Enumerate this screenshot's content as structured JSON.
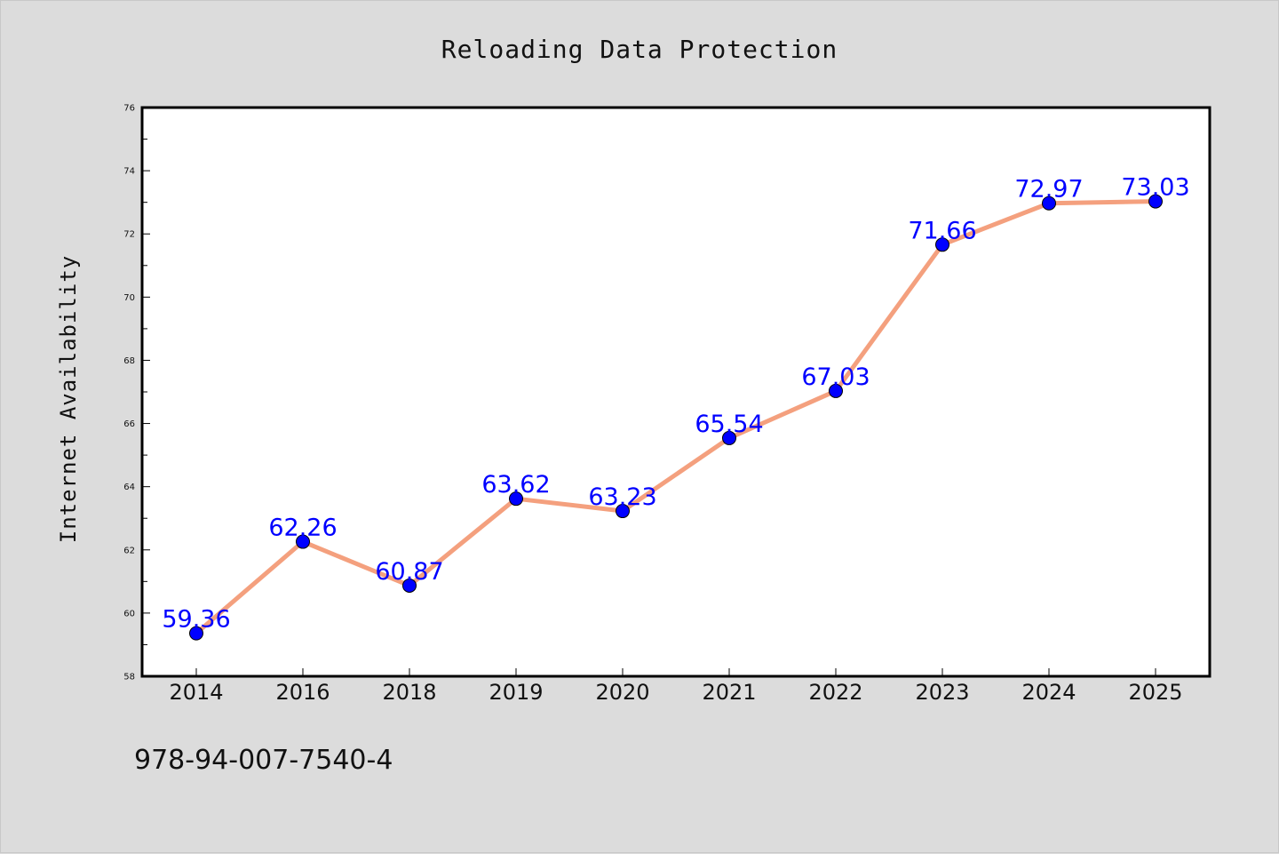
{
  "chart_data": {
    "type": "line",
    "title": "Reloading Data Protection",
    "xlabel": "",
    "ylabel": "Internet Availability",
    "categories": [
      "2014",
      "2016",
      "2018",
      "2019",
      "2020",
      "2021",
      "2022",
      "2023",
      "2024",
      "2025"
    ],
    "series": [
      {
        "values": [
          59.36,
          62.26,
          60.87,
          63.62,
          63.23,
          65.54,
          67.03,
          71.66,
          72.97,
          73.03
        ],
        "line_color": "#f4a07e",
        "marker_color": "#0000ff"
      }
    ],
    "data_labels": [
      "59.36",
      "62.26",
      "60.87",
      "63.62",
      "63.23",
      "65.54",
      "67.03",
      "71.66",
      "72.97",
      "73.03"
    ],
    "ylim": [
      58,
      76
    ],
    "yticks": [
      58,
      60,
      62,
      64,
      66,
      68,
      70,
      72,
      74,
      76
    ],
    "grid": false,
    "legend": "none",
    "colors": {
      "background": "#dcdcdc",
      "plot_area": "#ffffff",
      "label": "#0000ff"
    }
  },
  "footnote": "978-94-007-7540-4"
}
